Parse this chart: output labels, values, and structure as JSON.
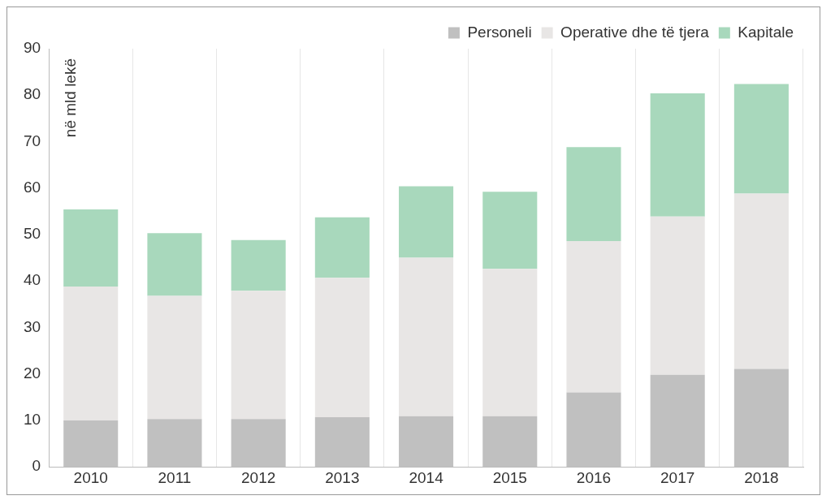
{
  "chart_data": {
    "type": "bar",
    "stacked": true,
    "ylabel": "në mld lekë",
    "categories": [
      "2010",
      "2011",
      "2012",
      "2013",
      "2014",
      "2015",
      "2016",
      "2017",
      "2018"
    ],
    "series": [
      {
        "name": "Personeli",
        "color": "#c0c0c0",
        "values": [
          10,
          10.3,
          10.3,
          10.7,
          10.9,
          10.9,
          16,
          19.8,
          21.1
        ]
      },
      {
        "name": "Operative dhe të tjera",
        "color": "#e8e6e5",
        "values": [
          28.8,
          26.5,
          27.6,
          30,
          34.1,
          31.7,
          32.6,
          34.1,
          37.7
        ]
      },
      {
        "name": "Kapitale",
        "color": "#a8d8bc",
        "values": [
          16.6,
          13.5,
          10.9,
          13,
          15.4,
          16.6,
          20.2,
          26.5,
          23.6
        ]
      }
    ],
    "ylim": [
      0,
      90
    ],
    "yticks": [
      0,
      10,
      20,
      30,
      40,
      50,
      60,
      70,
      80,
      90
    ],
    "grid": "x",
    "legend": "top right"
  }
}
